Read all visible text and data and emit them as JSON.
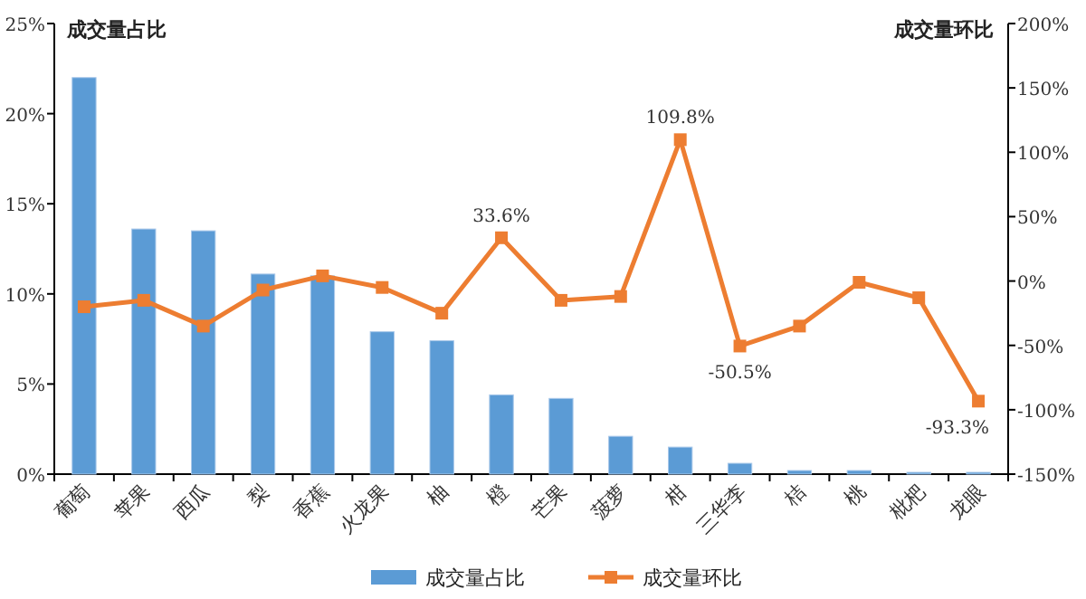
{
  "chart_data": {
    "type": "bar",
    "categories": [
      "葡萄",
      "苹果",
      "西瓜",
      "梨",
      "香蕉",
      "火龙果",
      "柚",
      "橙",
      "芒果",
      "菠萝",
      "柑",
      "三华李",
      "桔",
      "桃",
      "枇杷",
      "龙眼"
    ],
    "series": [
      {
        "name": "成交量占比",
        "color": "#5b9bd5",
        "values": [
          22.0,
          13.6,
          13.5,
          11.1,
          11.0,
          7.9,
          7.4,
          4.4,
          4.2,
          2.1,
          1.5,
          0.6,
          0.2,
          0.2,
          0.1,
          0.1
        ]
      },
      {
        "name": "成交量环比",
        "type": "line",
        "axis": "y2",
        "color": "#ed7d31",
        "marker": "square",
        "values": [
          -20,
          -15,
          -35,
          -7,
          4,
          -5,
          -25,
          33.6,
          -15,
          -12,
          109.8,
          -50.5,
          -35,
          -1,
          -13,
          -93.3
        ],
        "value_labels": [
          null,
          null,
          null,
          null,
          null,
          null,
          null,
          "33.6%",
          null,
          null,
          "109.8%",
          "-50.5%",
          null,
          null,
          null,
          "-93.3%"
        ]
      }
    ],
    "ylabel": "成交量占比",
    "y2label": "成交量环比",
    "ylim": [
      0,
      25
    ],
    "yticks": [
      {
        "value": 0,
        "label": "0%"
      },
      {
        "value": 5,
        "label": "5%"
      },
      {
        "value": 10,
        "label": "10%"
      },
      {
        "value": 15,
        "label": "15%"
      },
      {
        "value": 20,
        "label": "20%"
      },
      {
        "value": 25,
        "label": "25%"
      }
    ],
    "y2lim": [
      -150,
      200
    ],
    "y2ticks": [
      {
        "value": -150,
        "label": "-150%"
      },
      {
        "value": -100,
        "label": "-100%"
      },
      {
        "value": -50,
        "label": "-50%"
      },
      {
        "value": 0,
        "label": "0%"
      },
      {
        "value": 50,
        "label": "50%"
      },
      {
        "value": 100,
        "label": "100%"
      },
      {
        "value": 150,
        "label": "150%"
      },
      {
        "value": 200,
        "label": "200%"
      }
    ],
    "legend": "bottom"
  }
}
